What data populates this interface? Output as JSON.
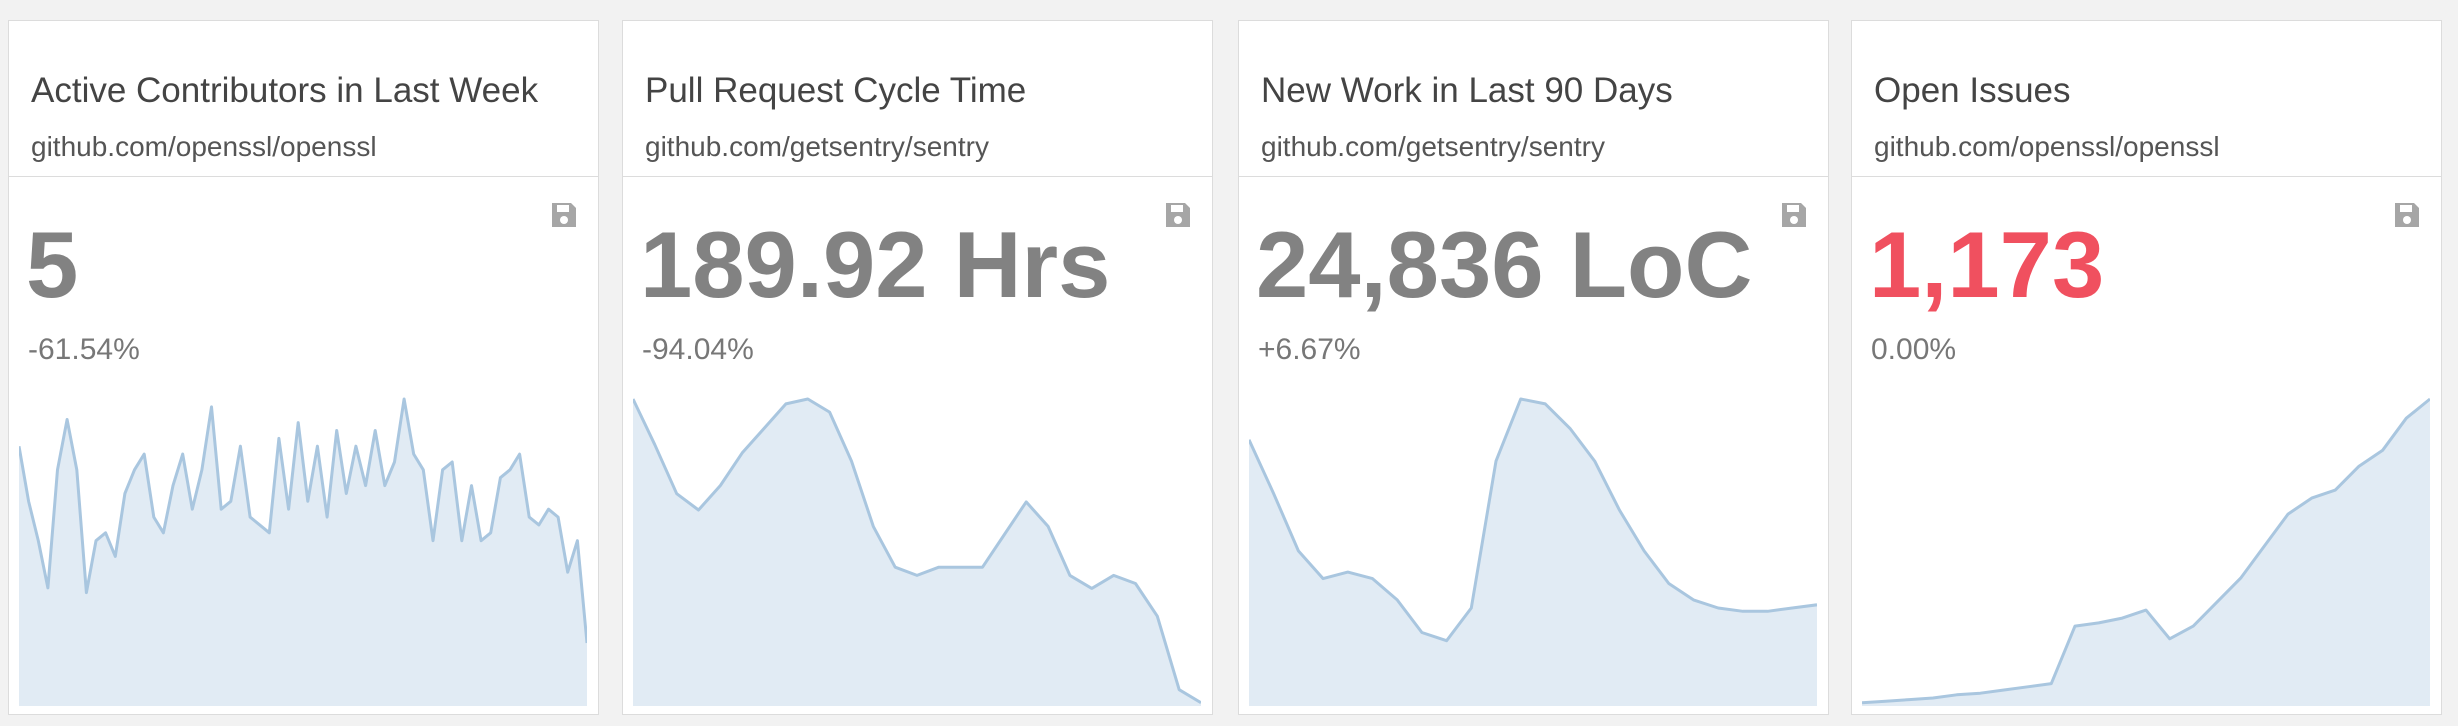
{
  "cards": [
    {
      "title": "Active Contributors in Last Week",
      "subtitle": "github.com/openssl/openssl",
      "value": "5",
      "change": "-61.54%",
      "color": "#828282",
      "sparkline": [
        165,
        130,
        105,
        75,
        150,
        182,
        150,
        72,
        105,
        110,
        95,
        135,
        150,
        160,
        120,
        110,
        140,
        160,
        125,
        150,
        190,
        125,
        130,
        165,
        120,
        115,
        110,
        170,
        125,
        180,
        130,
        165,
        120,
        175,
        135,
        165,
        140,
        175,
        140,
        155,
        195,
        160,
        150,
        105,
        150,
        155,
        105,
        140,
        105,
        110,
        145,
        150,
        160,
        120,
        115,
        125,
        120,
        85,
        105,
        40
      ]
    },
    {
      "title": "Pull Request Cycle Time",
      "subtitle": "github.com/getsentry/sentry",
      "value": "189.92 Hrs",
      "change": "-94.04%",
      "color": "#828282",
      "sparkline": [
        188,
        160,
        130,
        120,
        135,
        155,
        170,
        185,
        188,
        180,
        150,
        110,
        85,
        80,
        85,
        85,
        85,
        105,
        125,
        110,
        80,
        72,
        80,
        75,
        55,
        10,
        2
      ]
    },
    {
      "title": "New Work in Last 90 Days",
      "subtitle": "github.com/getsentry/sentry",
      "value": "24,836 LoC",
      "change": "+6.67%",
      "color": "#828282",
      "sparkline": [
        163,
        130,
        95,
        78,
        82,
        78,
        65,
        45,
        40,
        60,
        150,
        188,
        185,
        170,
        150,
        120,
        95,
        75,
        65,
        60,
        58,
        58,
        60,
        62
      ]
    },
    {
      "title": "Open Issues",
      "subtitle": "github.com/openssl/openssl",
      "value": "1,173",
      "change": "0.00%",
      "color": "#f0505f",
      "sparkline": [
        2,
        3,
        4,
        5,
        7,
        8,
        10,
        12,
        14,
        50,
        52,
        55,
        60,
        42,
        50,
        65,
        80,
        100,
        120,
        130,
        135,
        150,
        160,
        180,
        192
      ]
    }
  ]
}
